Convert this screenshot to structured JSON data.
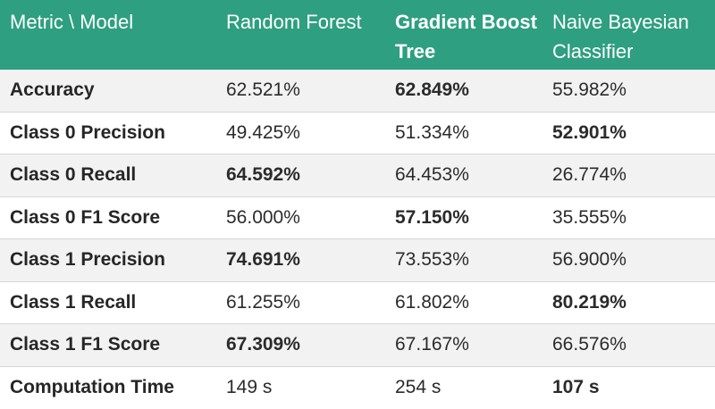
{
  "chart_data": {
    "type": "table",
    "header": [
      "Metric \\ Model",
      "Random Forest",
      "Gradient Boost Tree",
      "Naive Bayesian Classifier"
    ],
    "header_bold": [
      false,
      false,
      true,
      false
    ],
    "rows": [
      {
        "metric": "Accuracy",
        "values": [
          "62.521%",
          "62.849%",
          "55.982%"
        ],
        "best": 1
      },
      {
        "metric": "Class 0 Precision",
        "values": [
          "49.425%",
          "51.334%",
          "52.901%"
        ],
        "best": 2
      },
      {
        "metric": "Class 0 Recall",
        "values": [
          "64.592%",
          "64.453%",
          "26.774%"
        ],
        "best": 0
      },
      {
        "metric": "Class 0 F1 Score",
        "values": [
          "56.000%",
          "57.150%",
          "35.555%"
        ],
        "best": 1
      },
      {
        "metric": "Class 1 Precision",
        "values": [
          "74.691%",
          "73.553%",
          "56.900%"
        ],
        "best": 0
      },
      {
        "metric": "Class 1 Recall",
        "values": [
          "61.255%",
          "61.802%",
          "80.219%"
        ],
        "best": 2
      },
      {
        "metric": "Class 1 F1 Score",
        "values": [
          "67.309%",
          "67.167%",
          "66.576%"
        ],
        "best": 0
      },
      {
        "metric": "Computation Time",
        "values": [
          "149 s",
          "254 s",
          "107 s"
        ],
        "best": 2
      }
    ]
  },
  "colors": {
    "header_bg": "#2e9f80",
    "header_text": "#ffffff",
    "row_alt_bg": "#f2f2f2",
    "row_bg": "#ffffff",
    "text": "#2b2b2b",
    "divider": "#d6d6d6"
  }
}
